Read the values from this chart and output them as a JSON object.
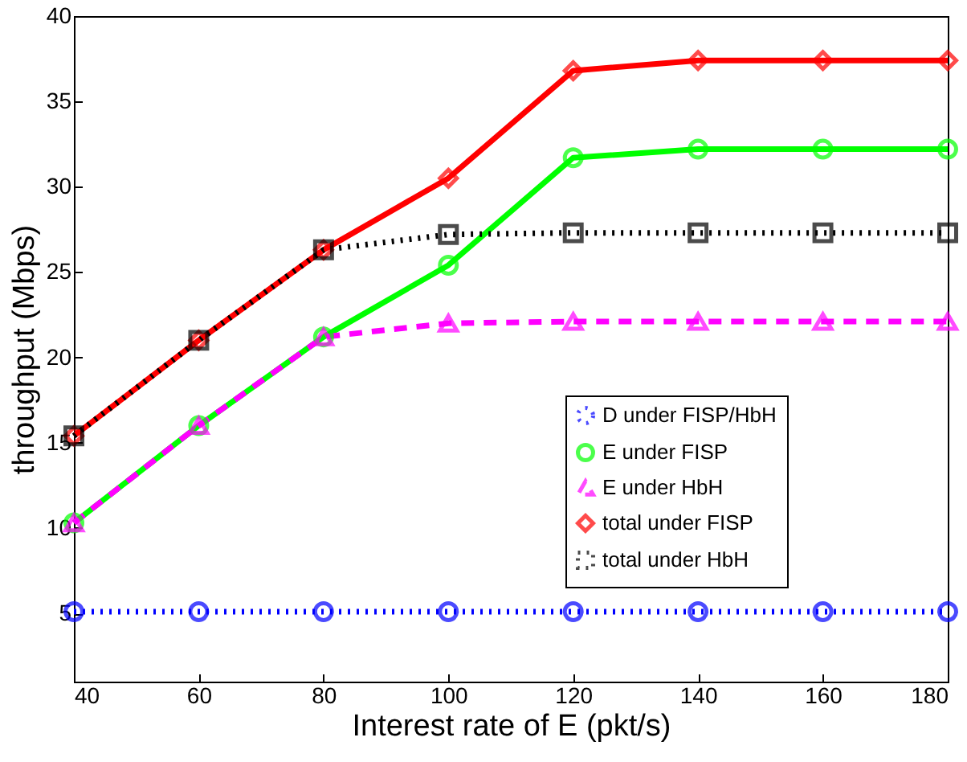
{
  "chart_data": {
    "type": "line",
    "xlabel": "Interest rate of E (pkt/s)",
    "ylabel": "throughput (Mbps)",
    "x": [
      40,
      60,
      80,
      100,
      120,
      140,
      160,
      180
    ],
    "xlim": [
      40,
      180
    ],
    "xticks": [
      40,
      60,
      80,
      100,
      120,
      140,
      160,
      180
    ],
    "ylim": [
      1,
      40
    ],
    "yticks": [
      5,
      10,
      15,
      20,
      25,
      30,
      35,
      40
    ],
    "legend": "bottom right",
    "series": [
      {
        "name": "D under FISP/HbH",
        "color": "#0000ff",
        "marker": "circle",
        "line_style": "dotted",
        "values": [
          5.1,
          5.1,
          5.1,
          5.1,
          5.1,
          5.1,
          5.1,
          5.1
        ]
      },
      {
        "name": "E under FISP",
        "color": "#00ff00",
        "marker": "circle",
        "line_style": "solid",
        "values": [
          10.3,
          16.0,
          21.2,
          25.4,
          31.7,
          32.2,
          32.2,
          32.2
        ]
      },
      {
        "name": "E under HbH",
        "color": "#ff00ff",
        "marker": "triangle",
        "line_style": "dashed",
        "values": [
          10.3,
          16.0,
          21.2,
          22.0,
          22.1,
          22.1,
          22.1,
          22.1
        ]
      },
      {
        "name": "total under FISP",
        "color": "#ff0000",
        "marker": "diamond",
        "line_style": "solid",
        "values": [
          15.4,
          21.0,
          26.3,
          30.5,
          36.8,
          37.4,
          37.4,
          37.4
        ]
      },
      {
        "name": "total under HbH",
        "color": "#000000",
        "marker": "square",
        "line_style": "dotted",
        "values": [
          15.4,
          21.0,
          26.3,
          27.2,
          27.3,
          27.3,
          27.3,
          27.3
        ]
      }
    ]
  }
}
